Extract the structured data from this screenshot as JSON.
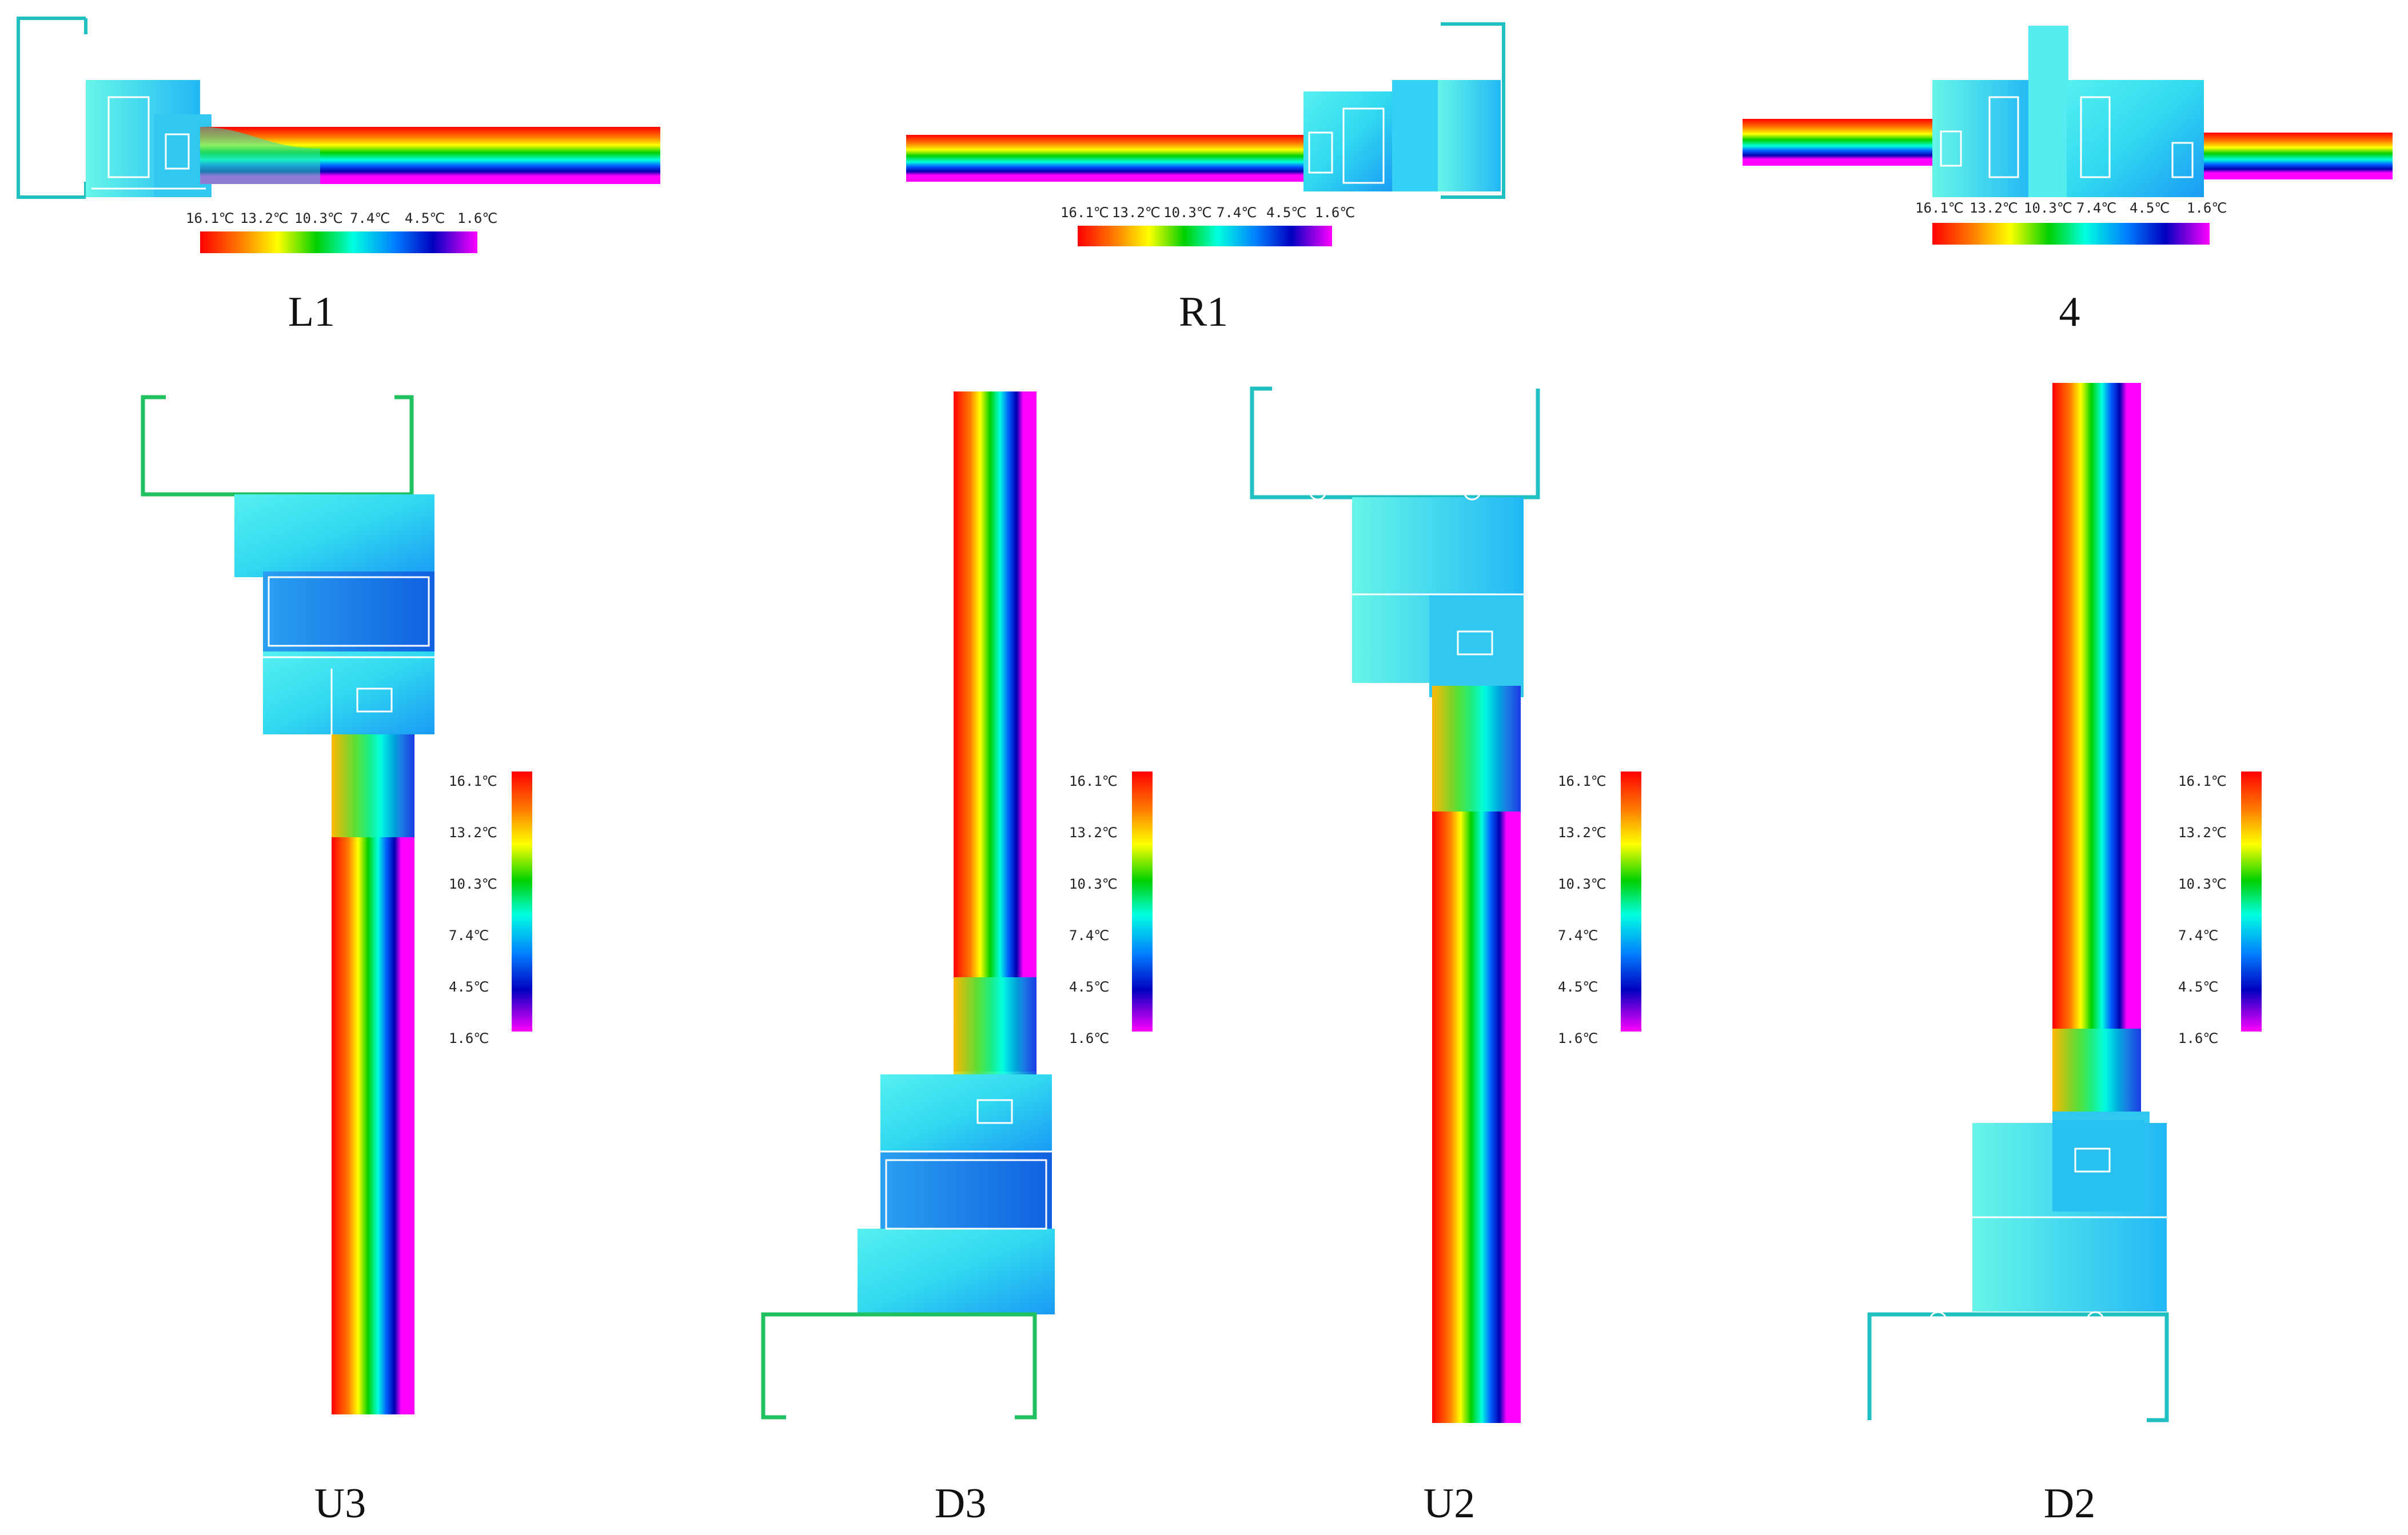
{
  "figure": {
    "panels": [
      {
        "id": "L1",
        "label": "L1"
      },
      {
        "id": "R1",
        "label": "R1"
      },
      {
        "id": "4",
        "label": "4"
      },
      {
        "id": "U3",
        "label": "U3"
      },
      {
        "id": "D3",
        "label": "D3"
      },
      {
        "id": "U2",
        "label": "U2"
      },
      {
        "id": "D2",
        "label": "D2"
      }
    ],
    "temperature_scale": {
      "unit": "℃",
      "ticks": [
        "16.1℃",
        "13.2℃",
        "10.3℃",
        "7.4℃",
        "4.5℃",
        "1.6℃"
      ],
      "colors": [
        "#ff0000",
        "#ff8000",
        "#ffff00",
        "#00d000",
        "#00ffe0",
        "#0080ff",
        "#0000c0",
        "#ff00ff"
      ]
    },
    "palette": {
      "frame_fill": "#33ddf0",
      "frame_fill_light": "#55eef5",
      "outline": "#ffffff",
      "bracket": "#20c0c0"
    }
  }
}
